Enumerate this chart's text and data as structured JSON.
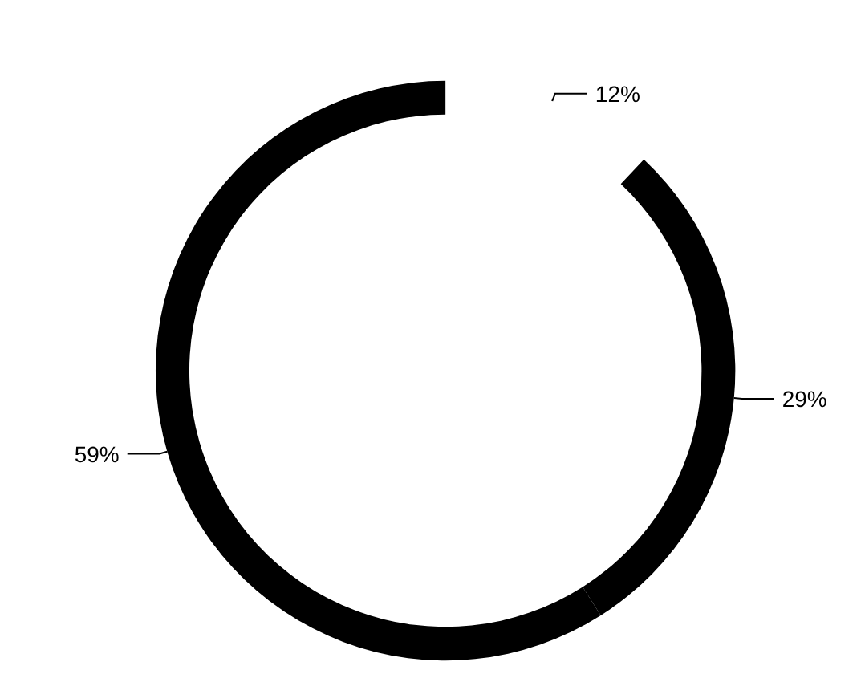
{
  "chart_data": {
    "type": "donut",
    "categories": [
      null,
      null,
      null
    ],
    "values": [
      12,
      29,
      59
    ],
    "colors": [
      "#ffffff",
      "#000000",
      "#000000"
    ],
    "value_labels": [
      "12%",
      "29%",
      "59%"
    ]
  }
}
